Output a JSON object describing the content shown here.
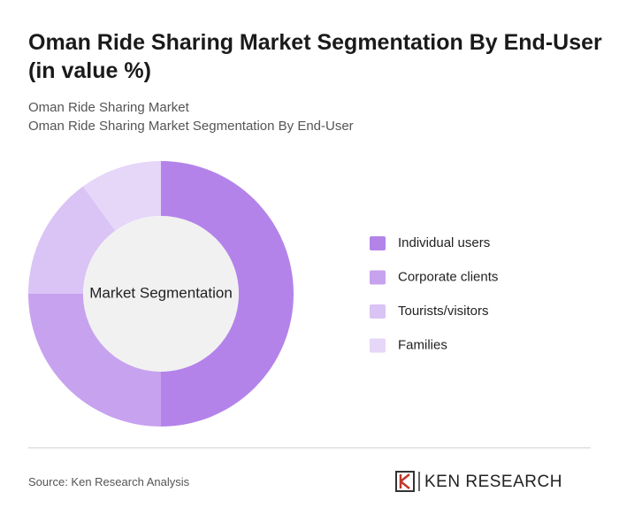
{
  "chart_data": {
    "type": "pie",
    "title": "Oman Ride Sharing Market Segmentation By End-User (in value %)",
    "subtitle": [
      "Oman Ride Sharing Market",
      "Oman Ride Sharing Market Segmentation By End-User"
    ],
    "center_label": "Market Segmentation",
    "categories": [
      "Individual users",
      "Corporate clients",
      "Tourists/visitors",
      "Families"
    ],
    "values": [
      50,
      25,
      15,
      10
    ],
    "colors": [
      "#b383ea",
      "#c7a2ef",
      "#dac3f5",
      "#e6d6f8"
    ],
    "legend": "right"
  },
  "footer": {
    "source": "Source: Ken Research Analysis",
    "brand": "KEN RESEARCH"
  }
}
